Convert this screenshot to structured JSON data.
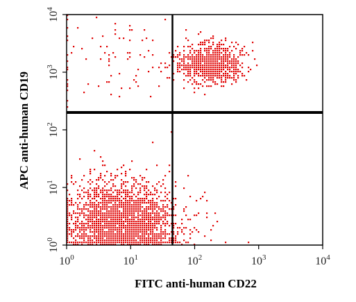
{
  "chart_data": {
    "type": "scatter",
    "title": "",
    "xlabel": "FITC anti-human CD22",
    "ylabel": "APC anti-human CD19",
    "x_scale": "log",
    "y_scale": "log",
    "xlim": [
      1,
      10000
    ],
    "ylim": [
      1,
      10000
    ],
    "x_ticks": [
      {
        "value": 1,
        "base": "10",
        "exp": "0"
      },
      {
        "value": 10,
        "base": "10",
        "exp": "1"
      },
      {
        "value": 100,
        "base": "10",
        "exp": "2"
      },
      {
        "value": 1000,
        "base": "10",
        "exp": "3"
      },
      {
        "value": 10000,
        "base": "10",
        "exp": "4"
      }
    ],
    "y_ticks": [
      {
        "value": 1,
        "base": "10",
        "exp": "0"
      },
      {
        "value": 10,
        "base": "10",
        "exp": "1"
      },
      {
        "value": 100,
        "base": "10",
        "exp": "2"
      },
      {
        "value": 1000,
        "base": "10",
        "exp": "3"
      },
      {
        "value": 10000,
        "base": "10",
        "exp": "4"
      }
    ],
    "quadrant_gates": {
      "x": 45,
      "y": 200
    },
    "point_color": "#e00000",
    "populations": [
      {
        "center": [
          7,
          2
        ],
        "log_spread": [
          0.42,
          0.38
        ],
        "count": 3200
      },
      {
        "center": [
          180,
          1400
        ],
        "log_spread": [
          0.26,
          0.17
        ],
        "count": 900
      },
      {
        "center": [
          6,
          2000
        ],
        "log_spread": [
          0.55,
          0.45
        ],
        "count": 90
      },
      {
        "center": [
          250,
          2.5
        ],
        "log_spread": [
          0.3,
          0.3
        ],
        "count": 8
      }
    ]
  }
}
